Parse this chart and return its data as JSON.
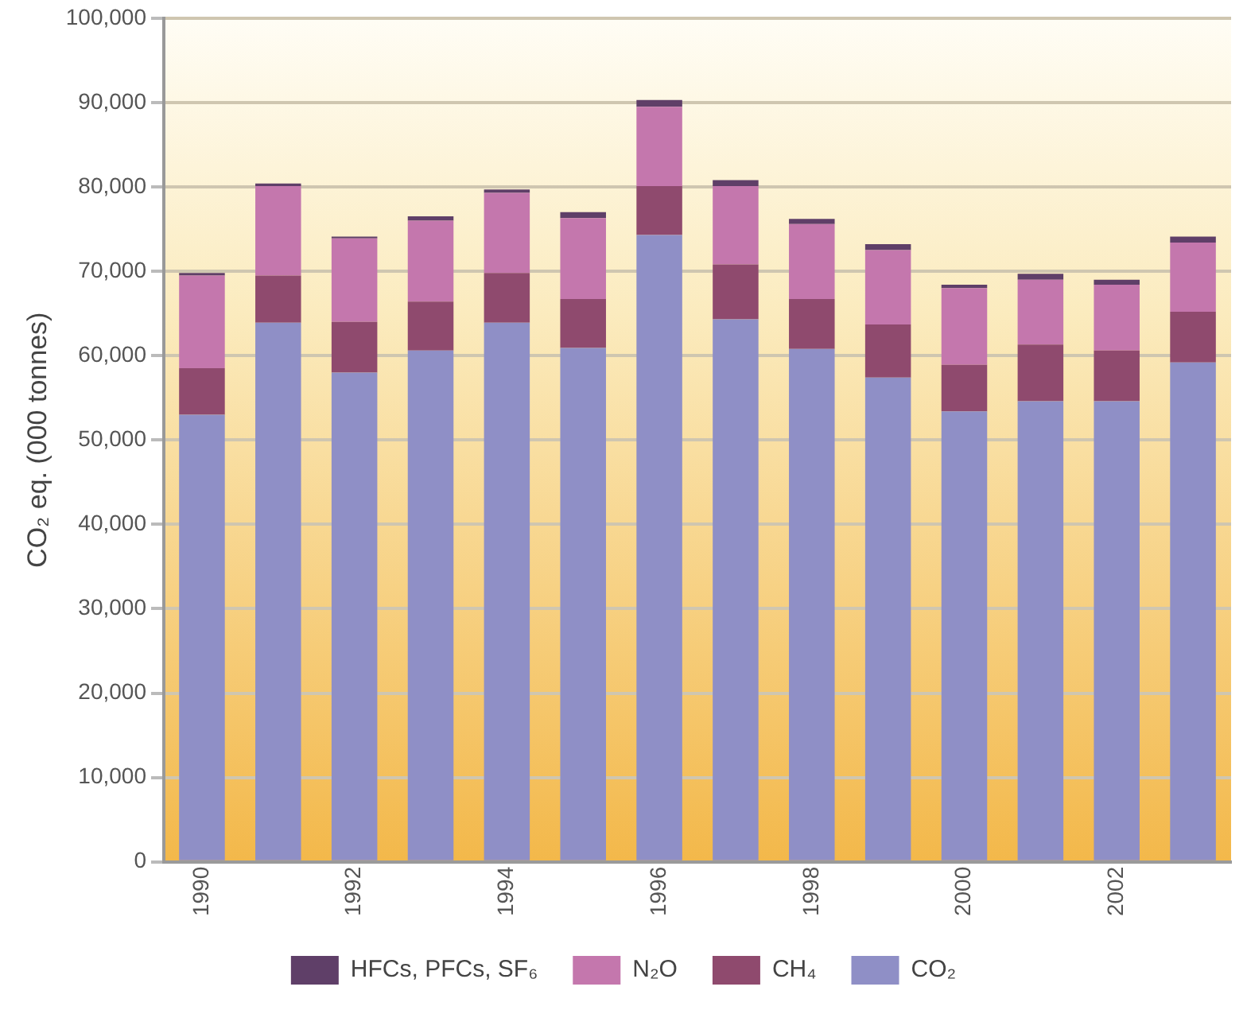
{
  "chart_data": {
    "type": "bar",
    "stacked": true,
    "ylabel": "CO₂ eq. (000 tonnes)",
    "categories": [
      "1990",
      null,
      "1992",
      null,
      "1994",
      null,
      "1996",
      null,
      "1998",
      null,
      "2000",
      null,
      "2002",
      null
    ],
    "series": [
      {
        "name": "CO₂",
        "color": "#8f8fc6",
        "values": [
          53000,
          63900,
          58000,
          60600,
          63900,
          60900,
          74300,
          64300,
          60800,
          57400,
          53400,
          54600,
          54600,
          59200
        ]
      },
      {
        "name": "CH₄",
        "color": "#8f4a6e",
        "values": [
          5500,
          5600,
          6000,
          5800,
          5900,
          5800,
          5800,
          6500,
          5900,
          6300,
          5500,
          6700,
          6000,
          6000
        ]
      },
      {
        "name": "N₂O",
        "color": "#c477ad",
        "values": [
          11000,
          10600,
          9900,
          9600,
          9500,
          9600,
          9400,
          9300,
          8900,
          8800,
          9100,
          7700,
          7800,
          8200
        ]
      },
      {
        "name": "HFCs, PFCs, SF₆",
        "color": "#5f3f68",
        "values": [
          300,
          300,
          200,
          500,
          400,
          700,
          800,
          700,
          600,
          700,
          400,
          700,
          600,
          700
        ]
      }
    ],
    "ylim": [
      0,
      100000
    ],
    "yticks": [
      0,
      {
        "value": 10000,
        "label": "10,000"
      },
      {
        "value": 20000,
        "label": "20,000"
      },
      {
        "value": 30000,
        "label": "30,000"
      },
      {
        "value": 40000,
        "label": "40,000"
      },
      {
        "value": 50000,
        "label": "50,000"
      },
      {
        "value": 60000,
        "label": "60,000"
      },
      {
        "value": 70000,
        "label": "70,000"
      },
      {
        "value": 80000,
        "label": "80,000"
      },
      {
        "value": 90000,
        "label": "90,000"
      },
      {
        "value": 100000,
        "label": "100,000"
      }
    ],
    "grid": "y",
    "legend": "bottom"
  }
}
